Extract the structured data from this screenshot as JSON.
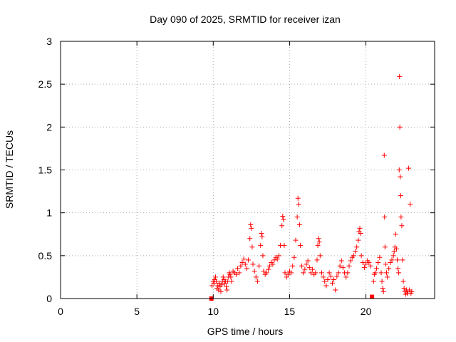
{
  "chart_data": {
    "type": "scatter",
    "title": "Day 090 of 2025, SRMTID for receiver izan",
    "xlabel": "GPS time / hours",
    "ylabel": "SRMTID / TECUs",
    "xlim": [
      0,
      24.5
    ],
    "ylim": [
      0,
      3
    ],
    "x_ticks": [
      0,
      5,
      10,
      15,
      20
    ],
    "x_tick_labels": [
      "0",
      "5",
      "10",
      "15",
      "20"
    ],
    "y_ticks": [
      0,
      0.5,
      1,
      1.5,
      2,
      2.5,
      3
    ],
    "y_tick_labels": [
      "0",
      "0.5",
      "1",
      "1.5",
      "2",
      "2.5",
      "3"
    ],
    "grid": true,
    "marker": "+",
    "series": [
      {
        "name": "SRMTID",
        "color": "#ff0000",
        "x": [
          9.88,
          9.92,
          10.0,
          10.05,
          10.1,
          10.15,
          10.2,
          10.25,
          10.3,
          10.35,
          10.4,
          10.45,
          10.5,
          10.55,
          10.6,
          10.65,
          10.7,
          10.75,
          10.8,
          10.85,
          10.9,
          10.95,
          11.0,
          11.05,
          11.1,
          11.15,
          11.2,
          11.3,
          11.4,
          11.5,
          11.6,
          11.7,
          11.8,
          11.9,
          12.0,
          12.1,
          12.2,
          12.3,
          12.4,
          12.45,
          12.5,
          12.55,
          12.6,
          12.7,
          12.8,
          12.9,
          13.0,
          13.1,
          13.15,
          13.2,
          13.25,
          13.3,
          13.4,
          13.5,
          13.6,
          13.7,
          13.8,
          13.9,
          14.0,
          14.1,
          14.2,
          14.3,
          14.4,
          14.5,
          14.55,
          14.6,
          14.65,
          14.7,
          14.8,
          14.9,
          15.0,
          15.1,
          15.2,
          15.3,
          15.4,
          15.5,
          15.55,
          15.6,
          15.65,
          15.7,
          15.8,
          15.9,
          16.0,
          16.1,
          16.2,
          16.3,
          16.4,
          16.5,
          16.6,
          16.7,
          16.8,
          16.85,
          16.9,
          16.95,
          17.0,
          17.1,
          17.2,
          17.3,
          17.4,
          17.5,
          17.6,
          17.7,
          17.8,
          17.9,
          18.0,
          18.1,
          18.2,
          18.3,
          18.4,
          18.5,
          18.6,
          18.7,
          18.8,
          18.9,
          19.0,
          19.1,
          19.2,
          19.3,
          19.4,
          19.5,
          19.55,
          19.6,
          19.65,
          19.7,
          19.8,
          19.9,
          20.0,
          20.1,
          20.2,
          20.3,
          20.4,
          20.5,
          20.55,
          20.6,
          20.7,
          20.8,
          20.9,
          21.0,
          21.05,
          21.1,
          21.15,
          21.2,
          21.22,
          21.25,
          21.3,
          21.35,
          21.4,
          21.5,
          21.6,
          21.7,
          21.8,
          21.85,
          21.9,
          21.95,
          22.0,
          22.05,
          22.1,
          22.15,
          22.18,
          22.2,
          22.22,
          22.25,
          22.28,
          22.3,
          22.35,
          22.4,
          22.45,
          22.5,
          22.55,
          22.6,
          22.65,
          22.7,
          22.75,
          22.8,
          22.85,
          22.9,
          22.95,
          23.0
        ],
        "y": [
          0.0,
          0.15,
          0.2,
          0.18,
          0.22,
          0.25,
          0.2,
          0.12,
          0.15,
          0.1,
          0.18,
          0.14,
          0.08,
          0.16,
          0.2,
          0.25,
          0.22,
          0.18,
          0.2,
          0.14,
          0.1,
          0.2,
          0.25,
          0.3,
          0.28,
          0.25,
          0.2,
          0.32,
          0.3,
          0.28,
          0.35,
          0.3,
          0.38,
          0.42,
          0.46,
          0.4,
          0.35,
          0.45,
          0.7,
          0.86,
          0.82,
          0.6,
          0.4,
          0.32,
          0.25,
          0.2,
          0.38,
          0.62,
          0.76,
          0.72,
          0.5,
          0.32,
          0.28,
          0.3,
          0.34,
          0.38,
          0.42,
          0.4,
          0.45,
          0.48,
          0.46,
          0.5,
          0.62,
          0.85,
          0.96,
          0.92,
          0.62,
          0.3,
          0.25,
          0.28,
          0.32,
          0.3,
          0.38,
          0.48,
          0.68,
          0.95,
          1.17,
          1.1,
          0.86,
          0.62,
          0.38,
          0.3,
          0.34,
          0.4,
          0.44,
          0.36,
          0.3,
          0.34,
          0.28,
          0.3,
          0.45,
          0.62,
          0.7,
          0.66,
          0.5,
          0.3,
          0.25,
          0.2,
          0.15,
          0.22,
          0.3,
          0.26,
          0.18,
          0.22,
          0.1,
          0.26,
          0.3,
          0.38,
          0.44,
          0.36,
          0.3,
          0.25,
          0.3,
          0.38,
          0.44,
          0.48,
          0.5,
          0.55,
          0.6,
          0.68,
          0.78,
          0.82,
          0.76,
          0.5,
          0.42,
          0.36,
          0.4,
          0.44,
          0.42,
          0.38,
          0.02,
          0.2,
          0.28,
          0.3,
          0.35,
          0.42,
          0.48,
          0.3,
          0.2,
          0.12,
          0.08,
          1.67,
          0.95,
          0.6,
          0.4,
          0.3,
          0.25,
          0.35,
          0.42,
          0.45,
          0.5,
          0.55,
          0.6,
          0.75,
          0.58,
          0.45,
          0.35,
          0.3,
          1.5,
          2.59,
          2.0,
          1.42,
          1.2,
          0.95,
          0.85,
          0.45,
          0.2,
          0.12,
          0.08,
          0.05,
          0.1,
          0.06,
          0.08,
          1.52,
          0.1,
          1.1,
          0.06,
          0.08
        ]
      }
    ]
  }
}
